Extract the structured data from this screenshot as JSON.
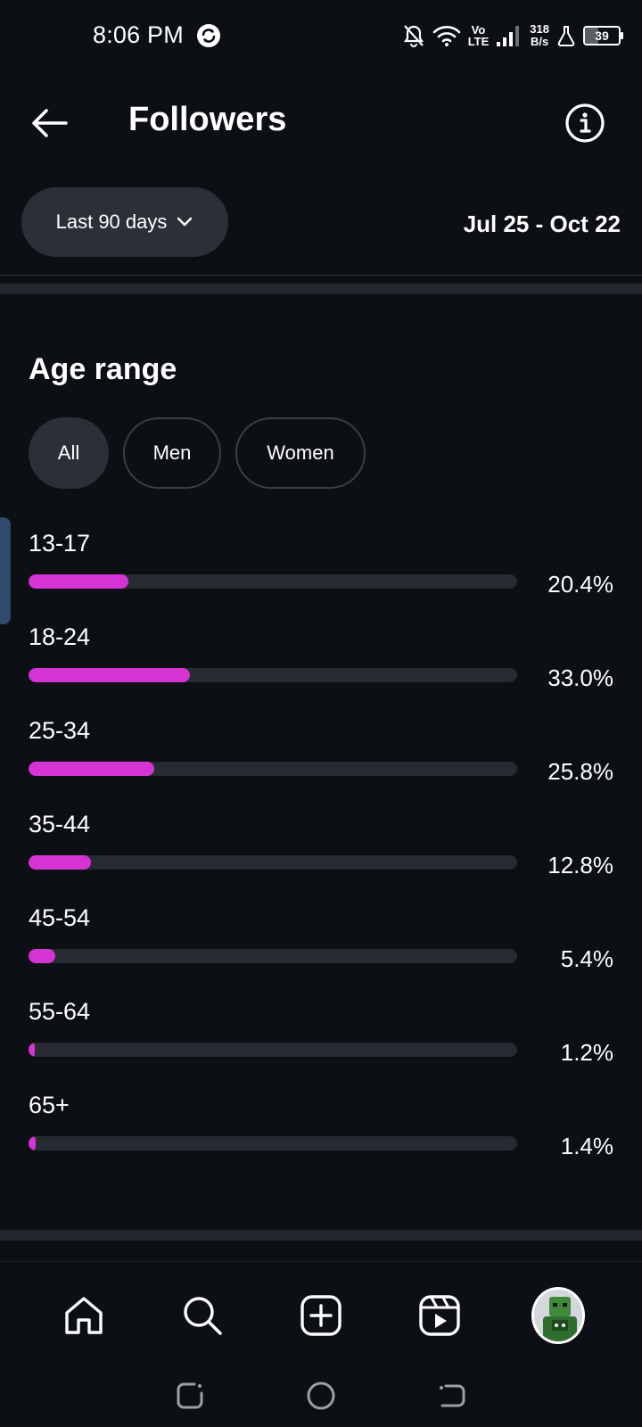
{
  "status_bar": {
    "time": "8:06 PM",
    "network_top": "Vo",
    "network_bottom": "LTE",
    "speed_value": "318",
    "speed_unit": "B/s",
    "battery": "39",
    "battery_level": 0.39
  },
  "header": {
    "title": "Followers",
    "back_icon": "arrow-left-icon",
    "info_icon": "info-icon"
  },
  "filter": {
    "range_label": "Last 90 days",
    "date_range": "Jul 25 - Oct 22"
  },
  "age_section": {
    "title": "Age range",
    "chips": [
      {
        "label": "All",
        "active": true
      },
      {
        "label": "Men",
        "active": false
      },
      {
        "label": "Women",
        "active": false
      }
    ],
    "bar_color": "#d633d4",
    "rows": [
      {
        "label": "13-17",
        "value": 20.4,
        "display": "20.4%"
      },
      {
        "label": "18-24",
        "value": 33.0,
        "display": "33.0%"
      },
      {
        "label": "25-34",
        "value": 25.8,
        "display": "25.8%"
      },
      {
        "label": "35-44",
        "value": 12.8,
        "display": "12.8%"
      },
      {
        "label": "45-54",
        "value": 5.4,
        "display": "5.4%"
      },
      {
        "label": "55-64",
        "value": 1.2,
        "display": "1.2%"
      },
      {
        "label": "65+",
        "value": 1.4,
        "display": "1.4%"
      }
    ]
  },
  "bottom_nav": [
    "home-icon",
    "search-icon",
    "create-icon",
    "reels-icon",
    "profile-avatar"
  ],
  "system_nav": [
    "recents-icon",
    "home-circle-icon",
    "back-gesture-icon"
  ]
}
